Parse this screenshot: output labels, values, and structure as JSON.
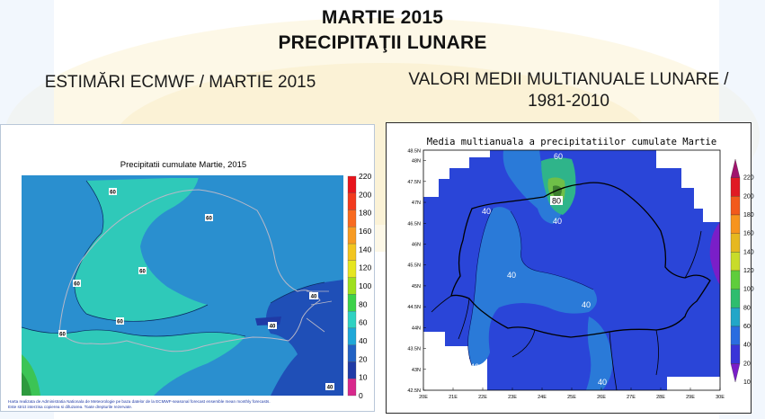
{
  "header": {
    "title_line1": "MARTIE 2015",
    "title_line2": "PRECIPITAŢII LUNARE"
  },
  "left_panel": {
    "heading": "ESTIMĂRI ECMWF / MARTIE 2015",
    "map_title": "Precipitatii cumulate Martie, 2015",
    "footnote_line1": "Harta realizata de Administratia Nationala de Meteorologie pe baza datelor de la ECMWF-seasonal forecast ensemble mean monthly forecasts.",
    "footnote_line2": "Este strict interzisa copierea si difuzarea. Toate drepturile rezervate.",
    "contour_labels": [
      "60",
      "60",
      "60",
      "60",
      "60",
      "60",
      "40",
      "40",
      "40"
    ],
    "legend": {
      "ticks": [
        "220",
        "200",
        "180",
        "160",
        "140",
        "120",
        "100",
        "80",
        "60",
        "40",
        "20",
        "10",
        "0"
      ],
      "colors": [
        "#e8141c",
        "#f23a1e",
        "#f86a1f",
        "#f79a22",
        "#f2c51f",
        "#e6e620",
        "#9ee01e",
        "#3cd24a",
        "#2fd2c2",
        "#1fa8d8",
        "#2262c4",
        "#1f3aa6",
        "#d8288c"
      ]
    }
  },
  "right_panel": {
    "heading_line1": "VALORI MEDII MULTIANUALE LUNARE /",
    "heading_line2": "1981-2010",
    "map_title": "Media multianuala a precipitatiilor cumulate Martie",
    "contour_labels": [
      "60",
      "80",
      "40",
      "40",
      "40",
      "40",
      "40",
      "40"
    ],
    "lat_ticks": [
      "48N",
      "47.5N",
      "47N",
      "46.5N",
      "46N",
      "45.5N",
      "45N",
      "44.5N",
      "44N",
      "43.5N",
      "43N",
      "42.5N"
    ],
    "lon_ticks": [
      "20E",
      "21E",
      "22E",
      "23E",
      "24E",
      "25E",
      "26E",
      "27E",
      "28E",
      "29E",
      "30E"
    ],
    "top_lat_tick": "48.5N",
    "legend": {
      "ticks": [
        "220",
        "200",
        "180",
        "160",
        "140",
        "120",
        "100",
        "80",
        "60",
        "40",
        "20",
        "10"
      ],
      "colors": [
        "#a0146e",
        "#e01a24",
        "#f25a1c",
        "#f7941e",
        "#e6b820",
        "#c8dc2a",
        "#5fcd3c",
        "#2fbd6e",
        "#22a6c8",
        "#2a6ce0",
        "#3a34d8",
        "#7a1ec8"
      ]
    }
  }
}
